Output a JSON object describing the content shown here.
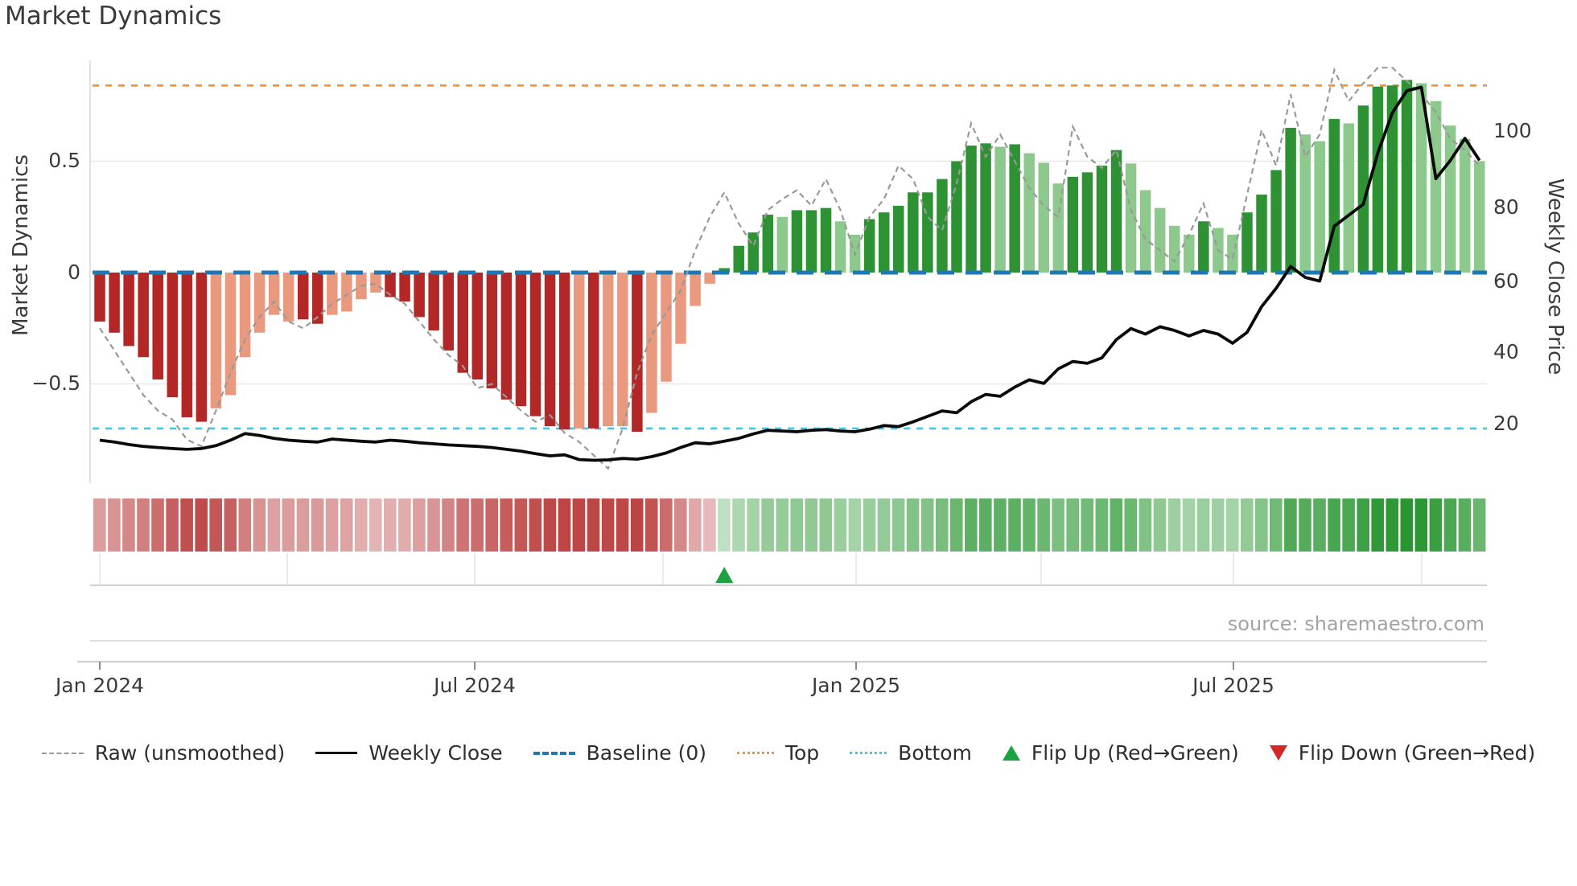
{
  "title": "Market Dynamics",
  "left_axis": {
    "label": "Market Dynamics",
    "ticks": [
      "0.5",
      "0",
      "−0.5"
    ]
  },
  "right_axis": {
    "label": "Weekly Close Price",
    "ticks": [
      "100",
      "80",
      "60",
      "40",
      "20"
    ]
  },
  "x_axis": {
    "ticks": [
      "Jan 2024",
      "Jul 2024",
      "Jan 2025",
      "Jul 2025"
    ]
  },
  "source": "source: sharemaestro.com",
  "legend": {
    "raw": "Raw (unsmoothed)",
    "weekly_close": "Weekly Close",
    "baseline": "Baseline (0)",
    "top": "Top",
    "bottom": "Bottom",
    "flip_up": "Flip Up (Red→Green)",
    "flip_down": "Flip Down (Green→Red)"
  },
  "colors": {
    "bar_red_dark": "#b32727",
    "bar_red_light": "#e9997e",
    "bar_green_dark": "#2e9235",
    "bar_green_light": "#8dc98d",
    "baseline": "#1f77b4",
    "top_line": "#f0923e",
    "bottom_line": "#3cc8e8",
    "raw_line": "#999999",
    "close_line": "#0a0a0a",
    "flip_up_marker": "#1ca23e",
    "flip_down_marker": "#d62728"
  },
  "chart_data": {
    "type": "bar",
    "title": "Market Dynamics",
    "frequency": "weekly",
    "x_range": [
      "Jan 2024",
      "Nov 2025"
    ],
    "x_ticks": [
      "Jan 2024",
      "Jul 2024",
      "Jan 2025",
      "Jul 2025"
    ],
    "ylabel_left": "Market Dynamics",
    "ylabel_right": "Weekly Close Price",
    "ylim_left": [
      -0.9,
      0.95
    ],
    "left_tick_values": [
      0.5,
      0,
      -0.5
    ],
    "right_tick_values": [
      100,
      80,
      60,
      40,
      20
    ],
    "baseline": 0,
    "top_line": 0.84,
    "bottom_line": -0.7,
    "flip_up_week": 44,
    "flip_down_weeks": [],
    "oscillator": [
      -0.22,
      -0.27,
      -0.33,
      -0.38,
      -0.48,
      -0.56,
      -0.65,
      -0.67,
      -0.61,
      -0.55,
      -0.38,
      -0.27,
      -0.19,
      -0.22,
      -0.21,
      -0.23,
      -0.19,
      -0.175,
      -0.12,
      -0.09,
      -0.11,
      -0.13,
      -0.2,
      -0.26,
      -0.35,
      -0.45,
      -0.48,
      -0.52,
      -0.57,
      -0.6,
      -0.645,
      -0.69,
      -0.705,
      -0.7,
      -0.7,
      -0.69,
      -0.69,
      -0.715,
      -0.63,
      -0.49,
      -0.32,
      -0.15,
      -0.05,
      0.02,
      0.12,
      0.18,
      0.26,
      0.25,
      0.28,
      0.28,
      0.29,
      0.23,
      0.17,
      0.24,
      0.27,
      0.3,
      0.36,
      0.36,
      0.42,
      0.5,
      0.57,
      0.58,
      0.565,
      0.576,
      0.536,
      0.493,
      0.4,
      0.43,
      0.45,
      0.48,
      0.55,
      0.49,
      0.37,
      0.29,
      0.21,
      0.17,
      0.23,
      0.2,
      0.17,
      0.27,
      0.35,
      0.46,
      0.65,
      0.62,
      0.59,
      0.69,
      0.67,
      0.75,
      0.835,
      0.84,
      0.865,
      0.85,
      0.77,
      0.66,
      0.6,
      0.5
    ],
    "bar_shade": "DDDDDDDDLLLLLLDDLLLLDDDDDDDDDDDDDLDLLDLLLLLDDDDLDDDLLDDDDDDDDDLDLLLDDDDLLLLLDLLDDDDLLDLDDDDLLLLL",
    "weekly_close": [
      15.5,
      15,
      14.3,
      13.8,
      13.5,
      13.2,
      13,
      13.2,
      14,
      15.5,
      17.3,
      16.8,
      16,
      15.5,
      15.2,
      15,
      15.8,
      15.5,
      15.2,
      15,
      15.5,
      15.2,
      14.8,
      14.5,
      14.2,
      14,
      13.8,
      13.5,
      13,
      12.5,
      11.8,
      11.2,
      11.5,
      10.2,
      10,
      10.1,
      10.5,
      10.3,
      11,
      12,
      13.5,
      14.8,
      14.5,
      15.2,
      16,
      17.2,
      18.2,
      18,
      17.8,
      18.2,
      18.4,
      18,
      17.8,
      18.5,
      19.5,
      19.2,
      20.5,
      22,
      23.5,
      23,
      26,
      28,
      27.5,
      30,
      32,
      31,
      35,
      37,
      36.5,
      38,
      43,
      46,
      44.5,
      46.5,
      45.5,
      44,
      45.5,
      44.5,
      42,
      45,
      52,
      57,
      63,
      60,
      59,
      74,
      77,
      80,
      94,
      105,
      111,
      112,
      87,
      92,
      98,
      92
    ],
    "raw": [
      -0.25,
      -0.35,
      -0.45,
      -0.55,
      -0.62,
      -0.66,
      -0.75,
      -0.78,
      -0.62,
      -0.45,
      -0.3,
      -0.2,
      -0.13,
      -0.22,
      -0.25,
      -0.2,
      -0.14,
      -0.1,
      -0.06,
      -0.05,
      -0.1,
      -0.14,
      -0.22,
      -0.3,
      -0.37,
      -0.42,
      -0.52,
      -0.5,
      -0.56,
      -0.62,
      -0.67,
      -0.64,
      -0.72,
      -0.76,
      -0.82,
      -0.88,
      -0.7,
      -0.45,
      -0.28,
      -0.18,
      -0.08,
      0.1,
      0.25,
      0.36,
      0.22,
      0.12,
      0.28,
      0.33,
      0.37,
      0.3,
      0.42,
      0.28,
      0.08,
      0.25,
      0.33,
      0.48,
      0.42,
      0.25,
      0.19,
      0.4,
      0.67,
      0.52,
      0.62,
      0.5,
      0.38,
      0.3,
      0.25,
      0.655,
      0.52,
      0.47,
      0.55,
      0.28,
      0.15,
      0.1,
      0.05,
      0.17,
      0.31,
      0.1,
      0.06,
      0.35,
      0.64,
      0.48,
      0.8,
      0.52,
      0.62,
      0.91,
      0.77,
      0.85,
      0.92,
      0.92,
      0.86,
      0.8,
      0.72,
      0.6,
      0.55,
      0.48
    ]
  }
}
